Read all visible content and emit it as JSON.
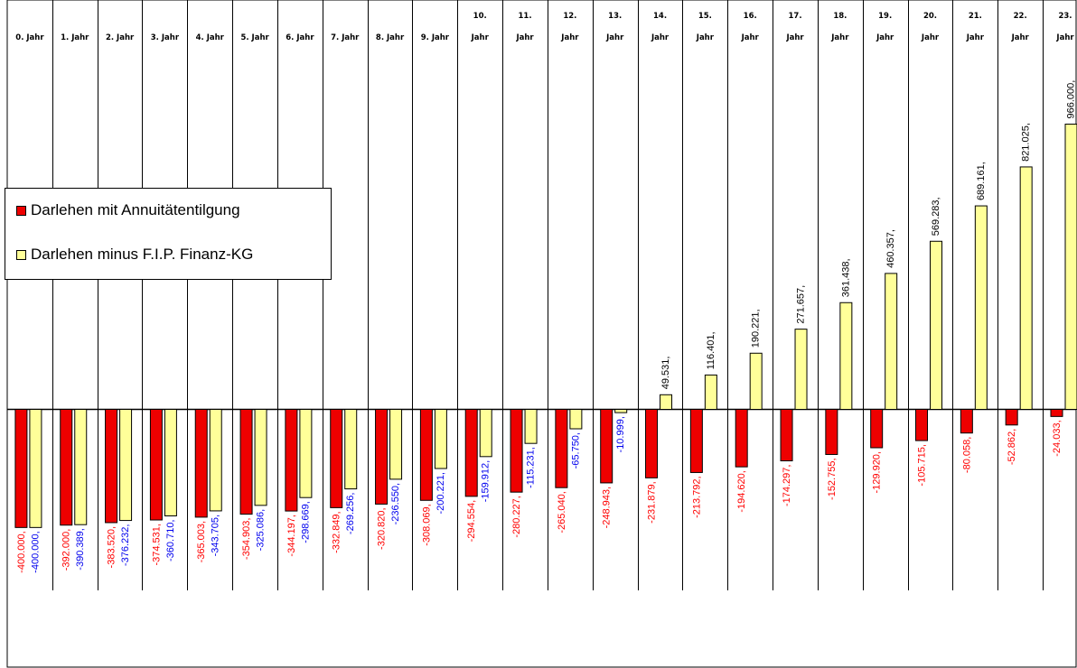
{
  "chart_data": {
    "type": "bar",
    "categories": [
      [
        "",
        "0. Jahr"
      ],
      [
        "",
        "1. Jahr"
      ],
      [
        "",
        "2. Jahr"
      ],
      [
        "",
        "3. Jahr"
      ],
      [
        "",
        "4. Jahr"
      ],
      [
        "",
        "5. Jahr"
      ],
      [
        "",
        "6. Jahr"
      ],
      [
        "",
        "7. Jahr"
      ],
      [
        "",
        "8. Jahr"
      ],
      [
        "",
        "9. Jahr"
      ],
      [
        "10.",
        "Jahr"
      ],
      [
        "11.",
        "Jahr"
      ],
      [
        "12.",
        "Jahr"
      ],
      [
        "13.",
        "Jahr"
      ],
      [
        "14.",
        "Jahr"
      ],
      [
        "15.",
        "Jahr"
      ],
      [
        "16.",
        "Jahr"
      ],
      [
        "17.",
        "Jahr"
      ],
      [
        "18.",
        "Jahr"
      ],
      [
        "19.",
        "Jahr"
      ],
      [
        "20.",
        "Jahr"
      ],
      [
        "21.",
        "Jahr"
      ],
      [
        "22.",
        "Jahr"
      ],
      [
        "23.",
        "Jahr"
      ]
    ],
    "series": [
      {
        "name": "Darlehen mit Annuitätentilgung",
        "color": "#ee0000",
        "label_color": "#ff0000",
        "values": [
          -400000,
          -392000,
          -383520,
          -374531,
          -365003,
          -354903,
          -344197,
          -332849,
          -320820,
          -308069,
          -294554,
          -280227,
          -265040,
          -248943,
          -231879,
          -213792,
          -194620,
          -174297,
          -152755,
          -129920,
          -105715,
          -80058,
          -52862,
          -24033
        ],
        "labels": [
          "-400.000,",
          "-392.000,",
          "-383.520,",
          "-374.531,",
          "-365.003,",
          "-354.903,",
          "-344.197,",
          "-332.849,",
          "-320.820,",
          "-308.069,",
          "-294.554,",
          "-280.227,",
          "-265.040,",
          "-248.943,",
          "-231.879,",
          "-213.792,",
          "-194.620,",
          "-174.297,",
          "-152.755,",
          "-129.920,",
          "-105.715,",
          "-80.058,",
          "-52.862,",
          "-24.033,"
        ]
      },
      {
        "name": "Darlehen minus F.I.P. Finanz-KG",
        "color": "#ffff99",
        "label_color": "#0000ee",
        "values": [
          -400000,
          -390389,
          -376232,
          -360710,
          -343705,
          -325086,
          -298669,
          -269256,
          -236550,
          -200221,
          -159912,
          -115231,
          -65750,
          -10999,
          49531,
          116401,
          190221,
          271657,
          361438,
          460357,
          569283,
          689161,
          821025,
          966000
        ],
        "labels": [
          "-400.000,",
          "-390.389,",
          "-376.232,",
          "-360.710,",
          "-343.705,",
          "-325.086,",
          "-298.669,",
          "-269.256,",
          "-236.550,",
          "-200.221,",
          "-159.912,",
          "-115.231,",
          "-65.750,",
          "-10.999,",
          "49.531,",
          "116.401,",
          "190.221,",
          "271.657,",
          "361.438,",
          "460.357,",
          "569.283,",
          "689.161,",
          "821.025,",
          "966.000,"
        ]
      }
    ],
    "ylim": [
      -850000,
      1350000
    ],
    "grid": "vertical",
    "legend": "left"
  }
}
